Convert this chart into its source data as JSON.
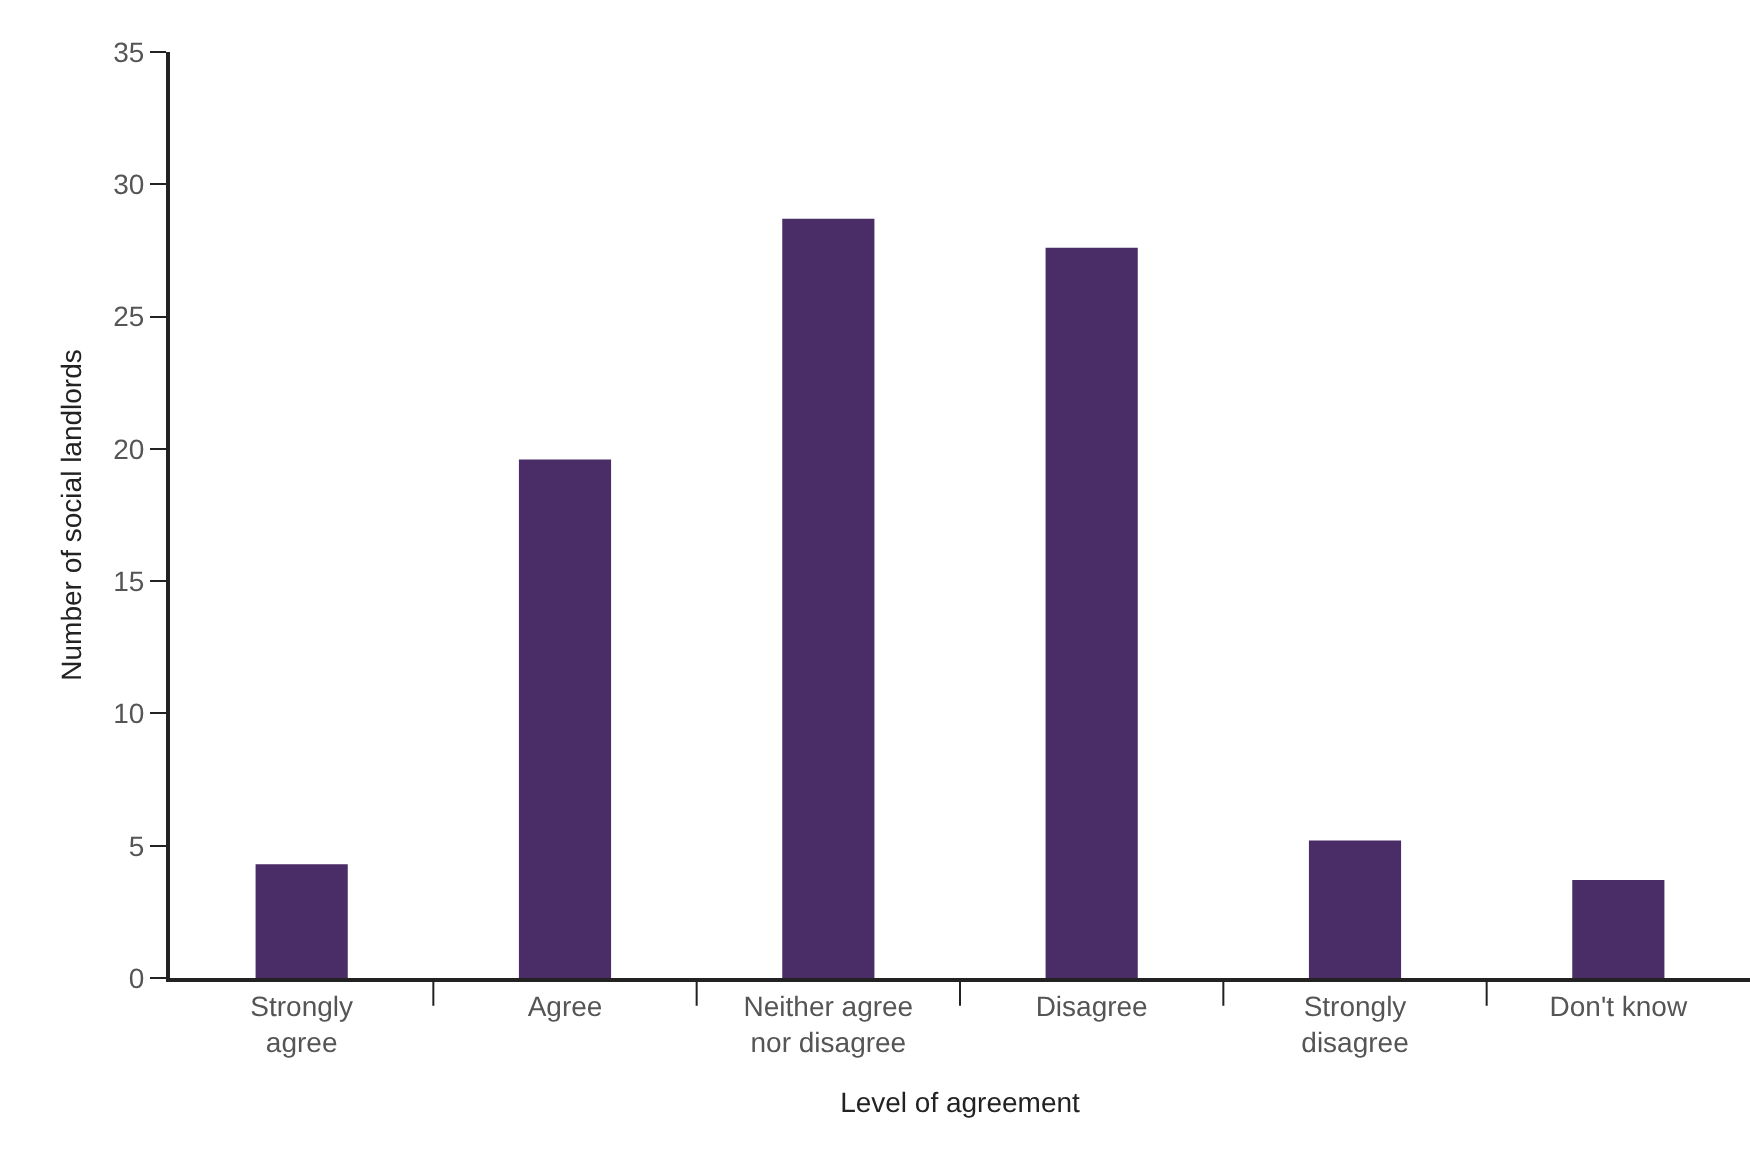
{
  "chart_data": {
    "type": "bar",
    "xlabel": "Level of agreement",
    "ylabel": "Number of social landlords",
    "categories": [
      "Strongly\nagree",
      "Agree",
      "Neither agree\nnor disagree",
      "Disagree",
      "Strongly\ndisagree",
      "Don't know"
    ],
    "values": [
      4.3,
      19.6,
      28.7,
      27.6,
      5.2,
      3.7
    ],
    "color": "#4a2c66",
    "ylim": [
      0,
      35
    ],
    "yticks": [
      0,
      5,
      10,
      15,
      20,
      25,
      30,
      35
    ]
  }
}
